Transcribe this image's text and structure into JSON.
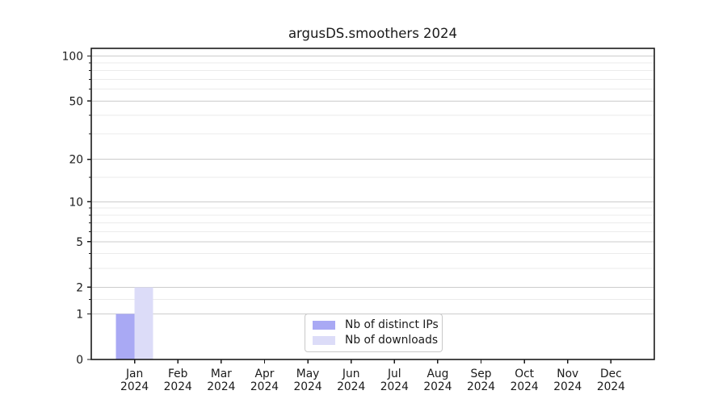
{
  "chart_data": {
    "type": "bar",
    "title": "argusDS.smoothers 2024",
    "x_categories": [
      "Jan",
      "Feb",
      "Mar",
      "Apr",
      "May",
      "Jun",
      "Jul",
      "Aug",
      "Sep",
      "Oct",
      "Nov",
      "Dec"
    ],
    "x_year_label": "2024",
    "series": [
      {
        "name": "Nb of distinct IPs",
        "color": "#a9a9f4",
        "values": [
          1,
          0,
          0,
          0,
          0,
          0,
          0,
          0,
          0,
          0,
          0,
          0
        ]
      },
      {
        "name": "Nb of downloads",
        "color": "#dcdcf8",
        "values": [
          2,
          0,
          0,
          0,
          0,
          0,
          0,
          0,
          0,
          0,
          0,
          0
        ]
      }
    ],
    "y_scale": "log10(1+y)",
    "y_major_ticks": [
      0,
      1,
      2,
      5,
      10,
      20,
      50,
      100
    ],
    "y_minor_gridlines": [
      1.5,
      3,
      4,
      6,
      7,
      8,
      9,
      15,
      30,
      40,
      60,
      70,
      80,
      90
    ],
    "ylim": [
      0,
      112.5
    ],
    "grid": true,
    "legend_position": "lower center",
    "colors": {
      "major_grid": "#cccccc",
      "minor_grid": "#ebebeb",
      "axis": "#1a1a1a",
      "text": "#1a1a1a"
    }
  }
}
